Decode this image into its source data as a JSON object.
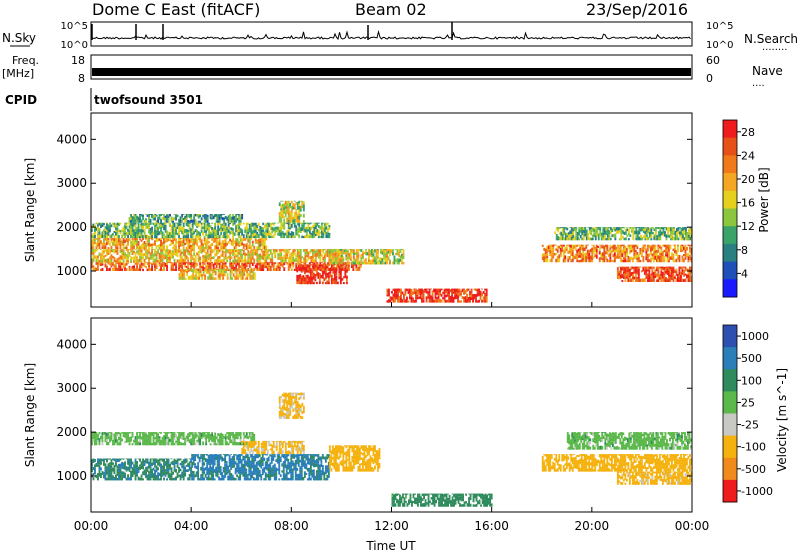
{
  "header": {
    "station": "Dome C East (fitACF)",
    "beam": "Beam 02",
    "date": "23/Sep/2016"
  },
  "panels": {
    "nsky": {
      "left_label": "N.Sky",
      "right_label": "N.Search",
      "right_dots": "........",
      "ticks_left": [
        "10^5",
        "10^0"
      ],
      "ticks_right": [
        "10^5",
        "10^0"
      ]
    },
    "freq": {
      "left_label_1": "Freq.",
      "left_label_2": "[MHz]",
      "right_label": "Nave",
      "right_dots": "....",
      "ticks_left": [
        "18",
        "8"
      ],
      "ticks_right": [
        "60",
        "0"
      ]
    },
    "cpid": {
      "label": "CPID",
      "program": "twofsound 3501"
    }
  },
  "chart_data": [
    {
      "type": "heatmap",
      "title": "",
      "quantity": "Power",
      "xlabel": "",
      "ylabel": "Slant Range [km]",
      "xlim": [
        "00:00",
        "24:00"
      ],
      "ylim": [
        180,
        4600
      ],
      "yticks": [
        "1000",
        "2000",
        "3000",
        "4000"
      ],
      "colorbar": {
        "label": "Power [dB]",
        "ticks": [
          "4",
          "8",
          "12",
          "16",
          "20",
          "24",
          "28"
        ],
        "range": [
          0,
          30
        ],
        "colors": [
          "#1a1aff",
          "#1f4fb8",
          "#2a7f80",
          "#3aa36a",
          "#8cc63f",
          "#e5d11d",
          "#f5a623",
          "#f07a1a",
          "#e8501a",
          "#ee1c1c"
        ]
      },
      "regions": [
        {
          "t": [
            0.0,
            10.8
          ],
          "r": [
            1000,
            1200
          ],
          "v": 24
        },
        {
          "t": [
            0.0,
            10.0
          ],
          "r": [
            1200,
            1500
          ],
          "v": 18
        },
        {
          "t": [
            0.0,
            7.0
          ],
          "r": [
            1500,
            1750
          ],
          "v": 20
        },
        {
          "t": [
            0.0,
            9.5
          ],
          "r": [
            1750,
            2100
          ],
          "v": 12
        },
        {
          "t": [
            1.5,
            6.0
          ],
          "r": [
            2100,
            2300
          ],
          "v": 10
        },
        {
          "t": [
            3.5,
            6.5
          ],
          "r": [
            800,
            1050
          ],
          "v": 18
        },
        {
          "t": [
            8.2,
            10.2
          ],
          "r": [
            700,
            1150
          ],
          "v": 28
        },
        {
          "t": [
            9.5,
            12.5
          ],
          "r": [
            1150,
            1500
          ],
          "v": 16
        },
        {
          "t": [
            11.8,
            15.8
          ],
          "r": [
            280,
            600
          ],
          "v": 28
        },
        {
          "t": [
            18.0,
            24.0
          ],
          "r": [
            1200,
            1600
          ],
          "v": 22
        },
        {
          "t": [
            21.0,
            24.0
          ],
          "r": [
            750,
            1100
          ],
          "v": 26
        },
        {
          "t": [
            18.5,
            24.0
          ],
          "r": [
            1700,
            2000
          ],
          "v": 12
        },
        {
          "t": [
            7.5,
            8.5
          ],
          "r": [
            2100,
            2600
          ],
          "v": 16
        }
      ]
    },
    {
      "type": "heatmap",
      "title": "",
      "quantity": "Velocity",
      "xlabel": "Time UT",
      "ylabel": "Slant Range [km]",
      "xlim": [
        "00:00",
        "24:00"
      ],
      "ylim": [
        180,
        4600
      ],
      "xticks": [
        "00:00",
        "04:00",
        "08:00",
        "12:00",
        "16:00",
        "20:00",
        "00:00"
      ],
      "yticks": [
        "1000",
        "2000",
        "3000",
        "4000"
      ],
      "colorbar": {
        "label": "Velocity [m s^-1]",
        "ticks": [
          "1000",
          "500",
          "100",
          "25",
          "-25",
          "-100",
          "-500",
          "-1000"
        ],
        "colors": [
          "#2d4fb0",
          "#2a7fb8",
          "#2f8a5c",
          "#5bb84a",
          "#c8c8c4",
          "#f5b20f",
          "#f08a1a",
          "#ee1c1c"
        ]
      },
      "regions": [
        {
          "t": [
            0.0,
            6.5
          ],
          "r": [
            1700,
            2000
          ],
          "v": 0
        },
        {
          "t": [
            0.0,
            4.0
          ],
          "r": [
            900,
            1400
          ],
          "v": 80
        },
        {
          "t": [
            4.0,
            9.5
          ],
          "r": [
            900,
            1500
          ],
          "v": 150
        },
        {
          "t": [
            9.5,
            11.5
          ],
          "r": [
            1100,
            1700
          ],
          "v": -300
        },
        {
          "t": [
            6.0,
            8.5
          ],
          "r": [
            1500,
            1800
          ],
          "v": -150
        },
        {
          "t": [
            12.0,
            16.0
          ],
          "r": [
            300,
            600
          ],
          "v": 60
        },
        {
          "t": [
            18.0,
            24.0
          ],
          "r": [
            1100,
            1500
          ],
          "v": -300
        },
        {
          "t": [
            21.0,
            24.0
          ],
          "r": [
            800,
            1100
          ],
          "v": -200
        },
        {
          "t": [
            19.0,
            24.0
          ],
          "r": [
            1600,
            2000
          ],
          "v": 0
        },
        {
          "t": [
            7.5,
            8.5
          ],
          "r": [
            2300,
            2900
          ],
          "v": -150
        }
      ]
    }
  ],
  "colors": {
    "background": "#ffffff",
    "axis": "#000000"
  }
}
